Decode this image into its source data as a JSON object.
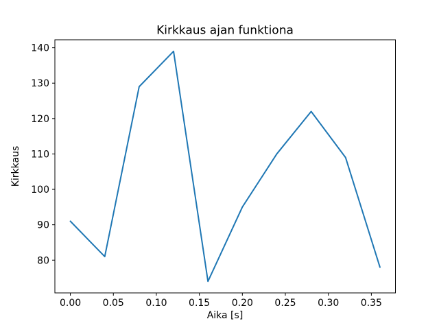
{
  "chart_data": {
    "type": "line",
    "title": "Kirkkaus ajan funktiona",
    "xlabel": "Aika [s]",
    "ylabel": "Kirkkaus",
    "x": [
      0.0,
      0.04,
      0.08,
      0.12,
      0.16,
      0.2,
      0.24,
      0.28,
      0.32,
      0.36
    ],
    "y": [
      91,
      81,
      129,
      139,
      74,
      95,
      110,
      122,
      109,
      78
    ],
    "series": [
      {
        "name": "Kirkkaus",
        "x": [
          0.0,
          0.04,
          0.08,
          0.12,
          0.16,
          0.2,
          0.24,
          0.28,
          0.32,
          0.36
        ],
        "y": [
          91,
          81,
          129,
          139,
          74,
          95,
          110,
          122,
          109,
          78
        ]
      }
    ],
    "xlim": [
      -0.018,
      0.378
    ],
    "ylim": [
      70.75,
      142.25
    ],
    "xticks": {
      "values": [
        0.0,
        0.05,
        0.1,
        0.15,
        0.2,
        0.25,
        0.3,
        0.35
      ],
      "labels": [
        "0.00",
        "0.05",
        "0.10",
        "0.15",
        "0.20",
        "0.25",
        "0.30",
        "0.35"
      ]
    },
    "yticks": {
      "values": [
        80,
        90,
        100,
        110,
        120,
        130,
        140
      ],
      "labels": [
        "80",
        "90",
        "100",
        "110",
        "120",
        "130",
        "140"
      ]
    },
    "line_color": "#1f77b4",
    "axis_color": "#000000",
    "background": "#ffffff",
    "grid": false,
    "legend_position": "none"
  }
}
